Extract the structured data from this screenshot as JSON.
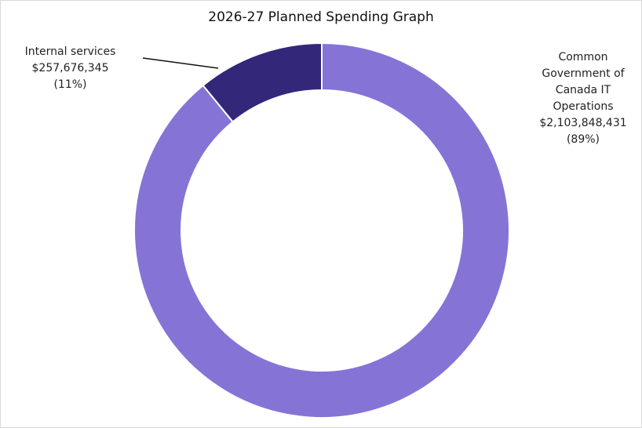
{
  "chart_data": {
    "type": "pie",
    "subtype": "donut",
    "title": "2026-27 Planned Spending Graph",
    "categories": [
      "Internal services",
      "Common Government of Canada IT Operations"
    ],
    "values": [
      257676345,
      2103848431
    ],
    "percentages": [
      11,
      89
    ],
    "value_labels": [
      "$257,676,345",
      "$2,103,848,431"
    ],
    "percent_labels": [
      "(11%)",
      "(89%)"
    ],
    "colors": [
      "#33277A",
      "#8574D6"
    ],
    "legend": "none",
    "xlabel": "",
    "ylabel": ""
  },
  "labels": {
    "internal": {
      "name": "Internal services",
      "value": "$257,676,345",
      "percent": "(11%)"
    },
    "common": {
      "name_lines": [
        "Common",
        "Government of",
        "Canada IT",
        "Operations"
      ],
      "value": "$2,103,848,431",
      "percent": "(89%)"
    }
  }
}
